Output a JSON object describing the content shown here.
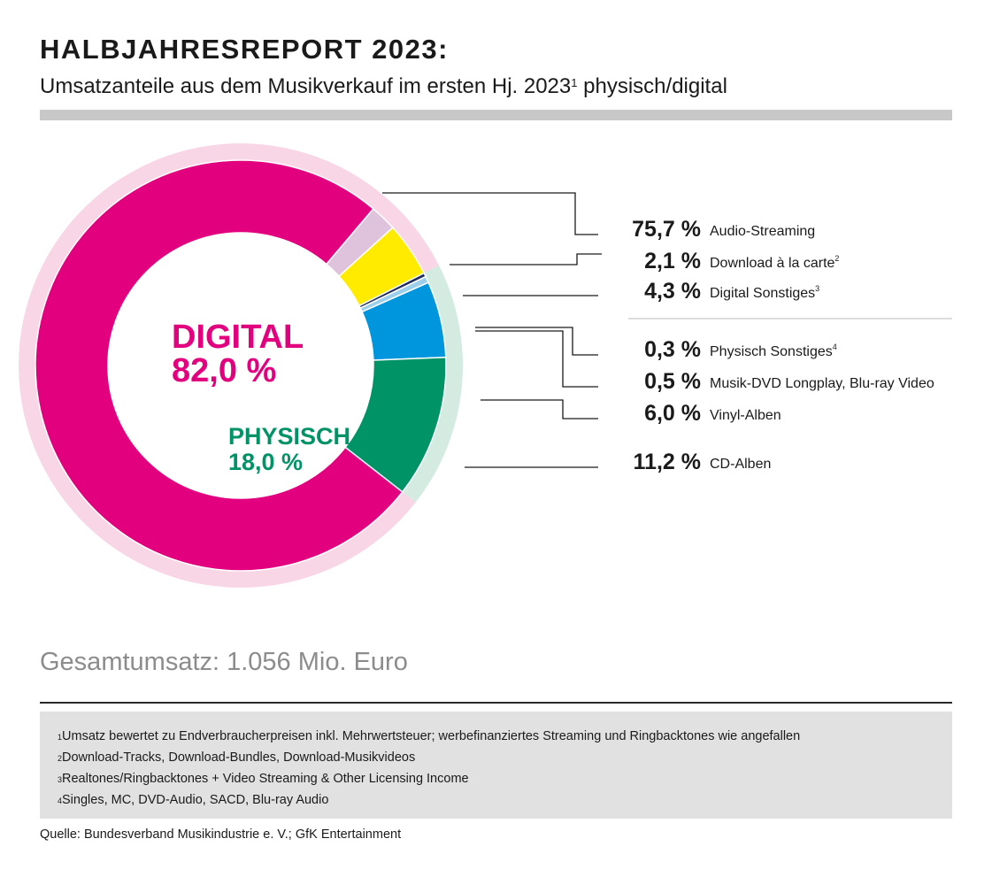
{
  "header": {
    "title": "HALBJAHRESREPORT 2023:",
    "subtitle_text": "Umsatzanteile aus dem Musikverkauf im ersten Hj. 2023",
    "subtitle_sup": "1",
    "subtitle_rest": " physisch/digital"
  },
  "chart_data": {
    "type": "pie",
    "variant": "donut",
    "groups": [
      {
        "name": "DIGITAL",
        "value_label": "82,0 %",
        "value": 82.0,
        "color": "#e3007e",
        "ring_color": "#f9d6e6"
      },
      {
        "name": "PHYSISCH",
        "value_label": "18,0 %",
        "value": 18.0,
        "color": "#009366",
        "ring_color": "#d4ebe1"
      }
    ],
    "slices": [
      {
        "label": "Audio-Streaming",
        "sup": "",
        "value": 75.7,
        "value_label": "75,7 %",
        "group": "DIGITAL",
        "color": "#e3007e"
      },
      {
        "label": "Download à la carte",
        "sup": "2",
        "value": 2.1,
        "value_label": "2,1 %",
        "group": "DIGITAL",
        "color": "#dfc3dc"
      },
      {
        "label": "Digital Sonstiges",
        "sup": "3",
        "value": 4.3,
        "value_label": "4,3 %",
        "group": "DIGITAL",
        "color": "#ffeb00"
      },
      {
        "label": "Physisch Sonstiges",
        "sup": "4",
        "value": 0.3,
        "value_label": "0,3 %",
        "group": "PHYSISCH",
        "color": "#1d2a5c"
      },
      {
        "label": "Musik-DVD Longplay, Blu-ray Video",
        "sup": "",
        "value": 0.5,
        "value_label": "0,5 %",
        "group": "PHYSISCH",
        "color": "#9ccfe9"
      },
      {
        "label": "Vinyl-Alben",
        "sup": "",
        "value": 6.0,
        "value_label": "6,0 %",
        "group": "PHYSISCH",
        "color": "#0096dd"
      },
      {
        "label": "CD-Alben",
        "sup": "",
        "value": 11.2,
        "value_label": "11,2 %",
        "group": "PHYSISCH",
        "color": "#009366"
      }
    ]
  },
  "total": "Gesamtumsatz: 1.056 Mio. Euro",
  "footnotes": [
    {
      "sup": "1",
      "text": "Umsatz bewertet zu Endverbraucherpreisen inkl. Mehrwertsteuer; werbefinanziertes Streaming und Ringbacktones wie angefallen"
    },
    {
      "sup": "2",
      "text": "Download-Tracks, Download-Bundles, Download-Musikvideos"
    },
    {
      "sup": "3",
      "text": "Realtones/Ringbacktones + Video Streaming & Other Licensing Income"
    },
    {
      "sup": "4",
      "text": "Singles, MC, DVD-Audio, SACD, Blu-ray Audio"
    }
  ],
  "source": "Quelle: Bundesverband Musikindustrie e. V.; GfK Entertainment"
}
